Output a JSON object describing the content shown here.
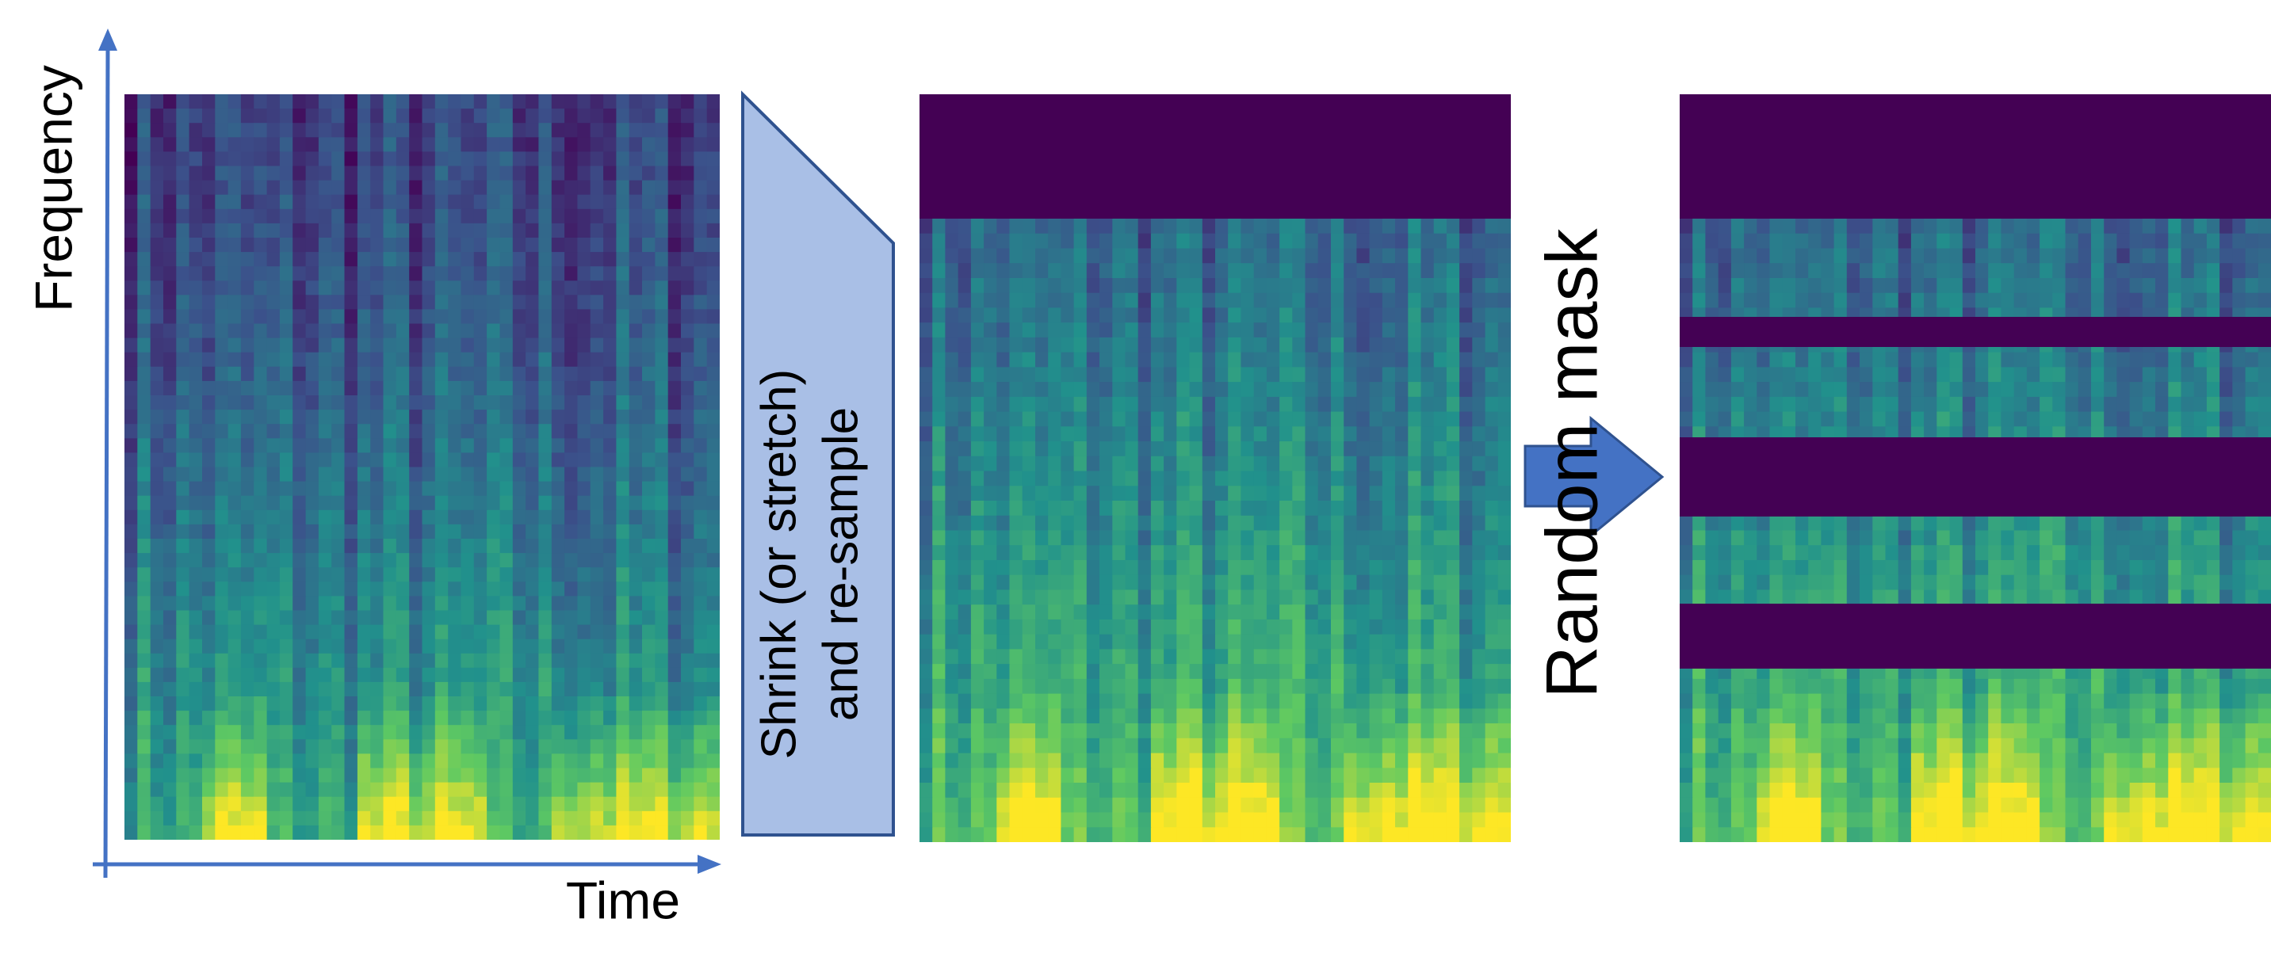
{
  "axes": {
    "y_label": "Frequency",
    "x_label": "Time"
  },
  "steps": [
    {
      "label_lines": [
        "Shrink (or stretch)",
        "and re-sample"
      ]
    },
    {
      "label": "Random mask"
    }
  ]
}
